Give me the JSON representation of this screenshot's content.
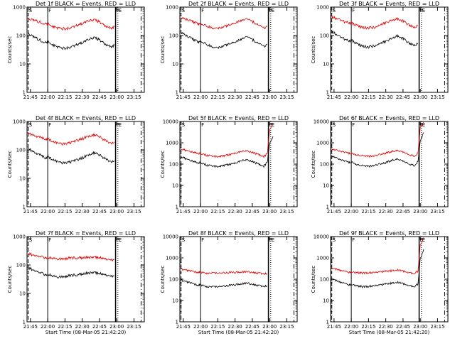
{
  "figure": {
    "common_x_ticks": [
      "21:45",
      "22:00",
      "22:15",
      "22:30",
      "22:45",
      "23:00",
      "23:15"
    ],
    "common_y_ticks_three_decade": [
      "1",
      "10",
      "100",
      "1000"
    ],
    "common_y_ticks_four_decade": [
      "1",
      "10",
      "100",
      "1000",
      "10000"
    ],
    "colors": {
      "events": "#000000",
      "lld": "#e00000",
      "axes": "#000000"
    }
  },
  "chart_data": [
    {
      "type": "line",
      "title": "Det 1f BLACK = Events, RED = LLD",
      "xlabel": "",
      "ylabel": "Counts/sec",
      "yscale": "log",
      "ylim": [
        1,
        1000
      ],
      "x_ticks": [
        "21:45",
        "22:00",
        "22:15",
        "22:30",
        "22:45",
        "23:00",
        "23:15"
      ],
      "y_ticks": [
        "1",
        "10",
        "100",
        "1000"
      ],
      "markers": [
        "S",
        "F",
        "P",
        "E"
      ],
      "series": [
        {
          "name": "Events",
          "color": "#000000",
          "x": [
            "21:43",
            "21:48",
            "21:53",
            "21:58",
            "22:00",
            "22:05",
            "22:10",
            "22:15",
            "22:20",
            "22:30",
            "22:35",
            "22:40",
            "22:45",
            "22:50",
            "22:55",
            "22:58"
          ],
          "values": [
            120,
            90,
            70,
            55,
            60,
            45,
            38,
            35,
            40,
            55,
            70,
            85,
            70,
            50,
            40,
            45
          ]
        },
        {
          "name": "LLD",
          "color": "#e00000",
          "x": [
            "21:43",
            "21:48",
            "21:53",
            "21:58",
            "22:00",
            "22:05",
            "22:10",
            "22:15",
            "22:20",
            "22:30",
            "22:35",
            "22:40",
            "22:45",
            "22:50",
            "22:55",
            "22:58"
          ],
          "values": [
            400,
            350,
            300,
            250,
            260,
            200,
            180,
            170,
            190,
            260,
            320,
            360,
            300,
            220,
            180,
            200
          ]
        }
      ]
    },
    {
      "type": "line",
      "title": "Det 2f BLACK = Events, RED = LLD",
      "xlabel": "",
      "ylabel": "Counts/sec",
      "yscale": "log",
      "ylim": [
        1,
        1000
      ],
      "x_ticks": [
        "21:45",
        "22:00",
        "22:15",
        "22:30",
        "22:45",
        "23:00",
        "23:15"
      ],
      "y_ticks": [
        "1",
        "10",
        "100",
        "1000"
      ],
      "markers": [
        "S",
        "F",
        "P",
        "E"
      ],
      "series": [
        {
          "name": "Events",
          "color": "#000000",
          "x": [
            "21:43",
            "21:48",
            "21:53",
            "21:58",
            "22:00",
            "22:05",
            "22:10",
            "22:15",
            "22:20",
            "22:30",
            "22:35",
            "22:40",
            "22:45",
            "22:50",
            "22:55",
            "22:58"
          ],
          "values": [
            130,
            95,
            75,
            60,
            65,
            48,
            40,
            36,
            42,
            58,
            72,
            88,
            72,
            52,
            42,
            48
          ]
        },
        {
          "name": "LLD",
          "color": "#e00000",
          "x": [
            "21:43",
            "21:48",
            "21:53",
            "21:58",
            "22:00",
            "22:05",
            "22:10",
            "22:15",
            "22:20",
            "22:30",
            "22:35",
            "22:40",
            "22:45",
            "22:50",
            "22:55",
            "22:58"
          ],
          "values": [
            420,
            360,
            310,
            260,
            270,
            210,
            185,
            175,
            195,
            270,
            330,
            370,
            310,
            230,
            185,
            210
          ]
        }
      ]
    },
    {
      "type": "line",
      "title": "Det 3f BLACK = Events, RED = LLD",
      "xlabel": "",
      "ylabel": "Counts/sec",
      "yscale": "log",
      "ylim": [
        1,
        1000
      ],
      "x_ticks": [
        "21:45",
        "22:00",
        "22:15",
        "22:30",
        "22:45",
        "23:00",
        "23:15"
      ],
      "y_ticks": [
        "1",
        "10",
        "100",
        "1000"
      ],
      "markers": [
        "S",
        "F",
        "P",
        "E"
      ],
      "series": [
        {
          "name": "Events",
          "color": "#000000",
          "x": [
            "21:43",
            "21:48",
            "21:53",
            "21:58",
            "22:00",
            "22:05",
            "22:10",
            "22:15",
            "22:20",
            "22:30",
            "22:35",
            "22:40",
            "22:45",
            "22:50",
            "22:55",
            "22:58"
          ],
          "values": [
            140,
            100,
            80,
            62,
            70,
            50,
            42,
            38,
            45,
            62,
            78,
            95,
            78,
            55,
            45,
            50
          ]
        },
        {
          "name": "LLD",
          "color": "#e00000",
          "x": [
            "21:43",
            "21:48",
            "21:53",
            "21:58",
            "22:00",
            "22:05",
            "22:10",
            "22:15",
            "22:20",
            "22:30",
            "22:35",
            "22:40",
            "22:45",
            "22:50",
            "22:55",
            "22:58"
          ],
          "values": [
            450,
            380,
            320,
            270,
            280,
            220,
            190,
            180,
            200,
            280,
            340,
            380,
            320,
            240,
            190,
            220
          ]
        }
      ]
    },
    {
      "type": "line",
      "title": "Det 4f BLACK = Events, RED = LLD",
      "xlabel": "",
      "ylabel": "Counts/sec",
      "yscale": "log",
      "ylim": [
        1,
        1000
      ],
      "x_ticks": [
        "21:45",
        "22:00",
        "22:15",
        "22:30",
        "22:45",
        "23:00",
        "23:15"
      ],
      "y_ticks": [
        "1",
        "10",
        "100",
        "1000"
      ],
      "markers": [
        "S",
        "F",
        "P",
        "E"
      ],
      "series": [
        {
          "name": "Events",
          "color": "#000000",
          "x": [
            "21:43",
            "21:48",
            "21:53",
            "21:58",
            "22:00",
            "22:05",
            "22:10",
            "22:15",
            "22:20",
            "22:30",
            "22:35",
            "22:40",
            "22:45",
            "22:50",
            "22:55",
            "22:58"
          ],
          "values": [
            110,
            85,
            68,
            52,
            58,
            44,
            37,
            34,
            38,
            52,
            66,
            80,
            66,
            48,
            38,
            42
          ]
        },
        {
          "name": "LLD",
          "color": "#e00000",
          "x": [
            "21:43",
            "21:48",
            "21:53",
            "21:58",
            "22:00",
            "22:05",
            "22:10",
            "22:15",
            "22:20",
            "22:30",
            "22:35",
            "22:40",
            "22:45",
            "22:50",
            "22:55",
            "22:58"
          ],
          "values": [
            380,
            330,
            280,
            240,
            250,
            190,
            170,
            160,
            180,
            250,
            300,
            340,
            290,
            210,
            170,
            190
          ]
        }
      ]
    },
    {
      "type": "line",
      "title": "Det 5f BLACK = Events, RED = LLD",
      "xlabel": "",
      "ylabel": "Counts/sec",
      "yscale": "log",
      "ylim": [
        1,
        10000
      ],
      "x_ticks": [
        "21:45",
        "22:00",
        "22:15",
        "22:30",
        "22:45",
        "23:00",
        "23:15"
      ],
      "y_ticks": [
        "1",
        "10",
        "100",
        "1000",
        "10000"
      ],
      "markers": [
        "S",
        "F",
        "P",
        "E"
      ],
      "series": [
        {
          "name": "Events",
          "color": "#000000",
          "x": [
            "21:43",
            "21:48",
            "21:53",
            "21:58",
            "22:00",
            "22:05",
            "22:10",
            "22:15",
            "22:20",
            "22:30",
            "22:35",
            "22:40",
            "22:45",
            "22:50",
            "22:55",
            "22:58",
            "23:00",
            "23:03"
          ],
          "values": [
            220,
            170,
            140,
            110,
            120,
            90,
            80,
            75,
            85,
            110,
            140,
            160,
            135,
            100,
            80,
            120,
            900,
            2000
          ]
        },
        {
          "name": "LLD",
          "color": "#e00000",
          "x": [
            "21:43",
            "21:48",
            "21:53",
            "21:58",
            "22:00",
            "22:05",
            "22:10",
            "22:15",
            "22:20",
            "22:30",
            "22:35",
            "22:40",
            "22:45",
            "22:50",
            "22:55",
            "22:58",
            "23:00",
            "23:03"
          ],
          "values": [
            500,
            430,
            370,
            310,
            320,
            260,
            230,
            220,
            240,
            320,
            380,
            420,
            360,
            280,
            230,
            300,
            4000,
            8000
          ]
        }
      ]
    },
    {
      "type": "line",
      "title": "Det 6f BLACK = Events, RED = LLD",
      "xlabel": "",
      "ylabel": "Counts/sec",
      "yscale": "log",
      "ylim": [
        1,
        10000
      ],
      "x_ticks": [
        "21:45",
        "22:00",
        "22:15",
        "22:30",
        "22:45",
        "23:00",
        "23:15"
      ],
      "y_ticks": [
        "1",
        "10",
        "100",
        "1000",
        "10000"
      ],
      "markers": [
        "S",
        "F",
        "P",
        "E"
      ],
      "series": [
        {
          "name": "Events",
          "color": "#000000",
          "x": [
            "21:43",
            "21:48",
            "21:53",
            "21:58",
            "22:00",
            "22:05",
            "22:10",
            "22:15",
            "22:20",
            "22:30",
            "22:35",
            "22:40",
            "22:45",
            "22:50",
            "22:55",
            "22:58",
            "23:00",
            "23:03"
          ],
          "values": [
            250,
            190,
            150,
            120,
            130,
            95,
            82,
            78,
            90,
            118,
            150,
            170,
            140,
            105,
            85,
            130,
            1200,
            3000
          ]
        },
        {
          "name": "LLD",
          "color": "#e00000",
          "x": [
            "21:43",
            "21:48",
            "21:53",
            "21:58",
            "22:00",
            "22:05",
            "22:10",
            "22:15",
            "22:20",
            "22:30",
            "22:35",
            "22:40",
            "22:45",
            "22:50",
            "22:55",
            "22:58",
            "23:00",
            "23:03"
          ],
          "values": [
            520,
            450,
            380,
            320,
            330,
            270,
            240,
            230,
            250,
            330,
            390,
            430,
            370,
            290,
            240,
            320,
            5000,
            9000
          ]
        }
      ]
    },
    {
      "type": "line",
      "title": "Det 7f BLACK = Events, RED = LLD",
      "xlabel": "Start Time (08-Mar-05 21:42:20)",
      "ylabel": "Counts/sec",
      "yscale": "log",
      "ylim": [
        1,
        1000
      ],
      "x_ticks": [
        "21:45",
        "22:00",
        "22:15",
        "22:30",
        "22:45",
        "23:00",
        "23:15"
      ],
      "y_ticks": [
        "1",
        "10",
        "100",
        "1000"
      ],
      "markers": [
        "S",
        "F",
        "P",
        "E"
      ],
      "series": [
        {
          "name": "Events",
          "color": "#000000",
          "x": [
            "21:43",
            "21:48",
            "21:53",
            "21:58",
            "22:00",
            "22:05",
            "22:10",
            "22:15",
            "22:20",
            "22:30",
            "22:35",
            "22:40",
            "22:45",
            "22:50",
            "22:55",
            "22:58"
          ],
          "values": [
            80,
            65,
            55,
            45,
            48,
            40,
            38,
            40,
            42,
            48,
            52,
            55,
            50,
            44,
            40,
            42
          ]
        },
        {
          "name": "LLD",
          "color": "#e00000",
          "x": [
            "21:43",
            "21:48",
            "21:53",
            "21:58",
            "22:00",
            "22:05",
            "22:10",
            "22:15",
            "22:20",
            "22:30",
            "22:35",
            "22:40",
            "22:45",
            "22:50",
            "22:55",
            "22:58"
          ],
          "values": [
            250,
            220,
            200,
            180,
            185,
            170,
            165,
            170,
            175,
            180,
            185,
            190,
            180,
            160,
            150,
            155
          ]
        }
      ]
    },
    {
      "type": "line",
      "title": "Det 8f BLACK = Events, RED = LLD",
      "xlabel": "Start Time (08-Mar-05 21:42:20)",
      "ylabel": "Counts/sec",
      "yscale": "log",
      "ylim": [
        1,
        10000
      ],
      "x_ticks": [
        "21:45",
        "22:00",
        "22:15",
        "22:30",
        "22:45",
        "23:00",
        "23:15"
      ],
      "y_ticks": [
        "1",
        "10",
        "100",
        "1000",
        "10000"
      ],
      "markers": [
        "S",
        "F",
        "P",
        "E"
      ],
      "series": [
        {
          "name": "Events",
          "color": "#000000",
          "x": [
            "21:43",
            "21:48",
            "21:53",
            "21:58",
            "22:00",
            "22:05",
            "22:10",
            "22:15",
            "22:20",
            "22:30",
            "22:35",
            "22:40",
            "22:45",
            "22:50",
            "22:55",
            "22:58"
          ],
          "values": [
            90,
            75,
            62,
            52,
            55,
            46,
            43,
            45,
            48,
            55,
            60,
            64,
            58,
            50,
            45,
            48
          ]
        },
        {
          "name": "LLD",
          "color": "#e00000",
          "x": [
            "21:43",
            "21:48",
            "21:53",
            "21:58",
            "22:00",
            "22:05",
            "22:10",
            "22:15",
            "22:20",
            "22:30",
            "22:35",
            "22:40",
            "22:45",
            "22:50",
            "22:55",
            "22:58"
          ],
          "values": [
            300,
            260,
            230,
            210,
            215,
            195,
            190,
            195,
            200,
            210,
            215,
            220,
            210,
            190,
            175,
            180
          ]
        }
      ]
    },
    {
      "type": "line",
      "title": "Det 9f BLACK = Events, RED = LLD",
      "xlabel": "Start Time (08-Mar-05 21:42:20)",
      "ylabel": "Counts/sec",
      "yscale": "log",
      "ylim": [
        1,
        10000
      ],
      "x_ticks": [
        "21:45",
        "22:00",
        "22:15",
        "22:30",
        "22:45",
        "23:00",
        "23:15"
      ],
      "y_ticks": [
        "1",
        "10",
        "100",
        "1000",
        "10000"
      ],
      "markers": [
        "S",
        "F",
        "P",
        "E"
      ],
      "series": [
        {
          "name": "Events",
          "color": "#000000",
          "x": [
            "21:43",
            "21:48",
            "21:53",
            "21:58",
            "22:00",
            "22:05",
            "22:10",
            "22:15",
            "22:20",
            "22:30",
            "22:35",
            "22:40",
            "22:45",
            "22:50",
            "22:55",
            "22:58",
            "23:00",
            "23:03"
          ],
          "values": [
            100,
            80,
            66,
            55,
            58,
            48,
            44,
            46,
            50,
            58,
            65,
            72,
            62,
            52,
            46,
            60,
            900,
            2500
          ]
        },
        {
          "name": "LLD",
          "color": "#e00000",
          "x": [
            "21:43",
            "21:48",
            "21:53",
            "21:58",
            "22:00",
            "22:05",
            "22:10",
            "22:15",
            "22:20",
            "22:30",
            "22:35",
            "22:40",
            "22:45",
            "22:50",
            "22:55",
            "22:58",
            "23:00",
            "23:03"
          ],
          "values": [
            320,
            280,
            240,
            215,
            220,
            200,
            195,
            200,
            210,
            230,
            250,
            270,
            240,
            210,
            190,
            240,
            4000,
            9000
          ]
        }
      ]
    }
  ]
}
